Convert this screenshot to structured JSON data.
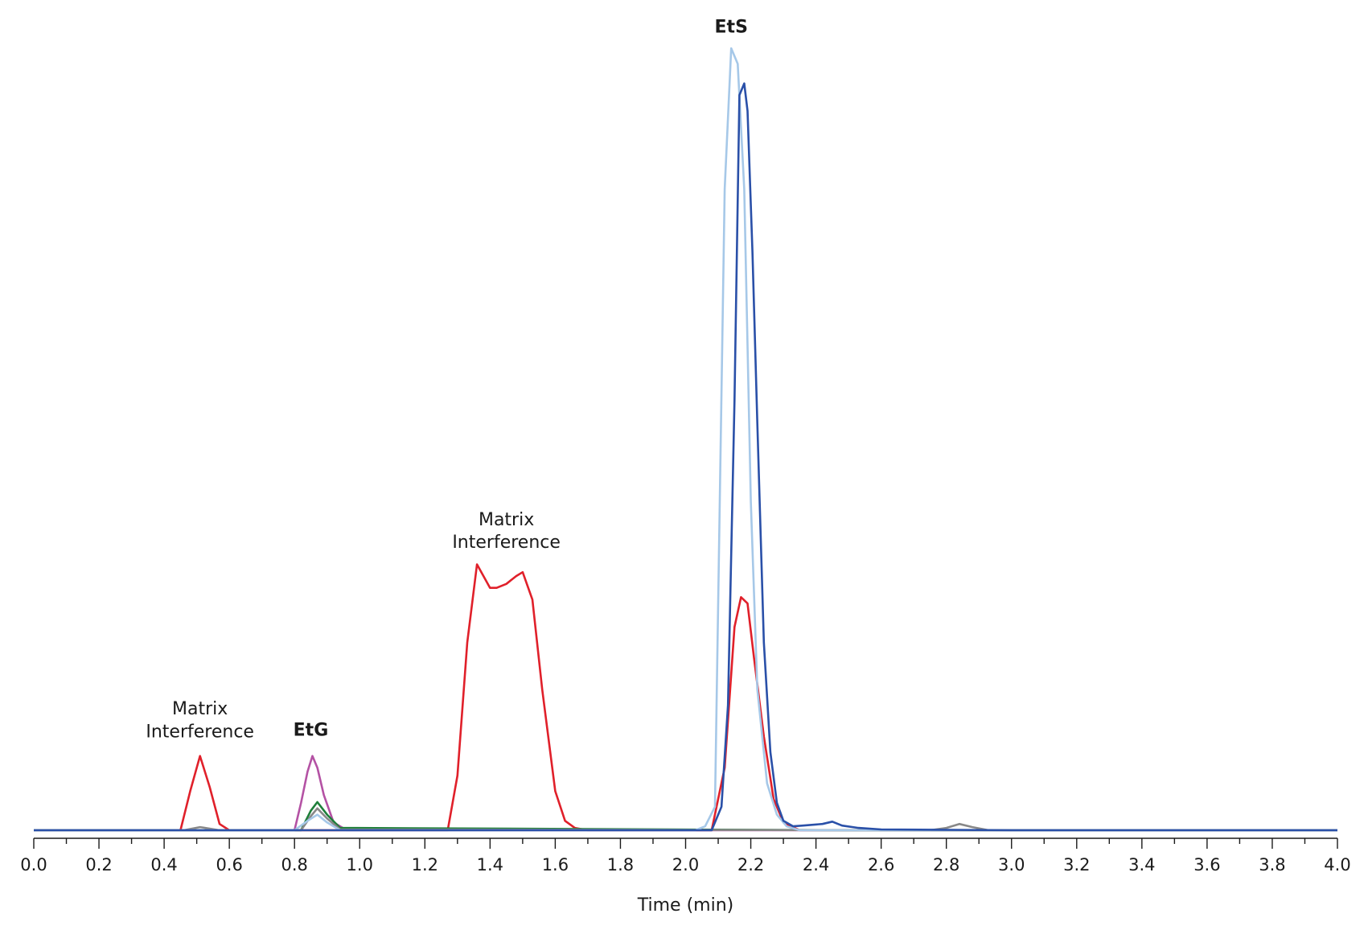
{
  "chart_data": {
    "type": "line",
    "title": "",
    "xlabel": "Time (min)",
    "ylabel": "",
    "xlim": [
      0.0,
      4.0
    ],
    "ylim": [
      0,
      100
    ],
    "grid": false,
    "x_ticks": [
      "0.0",
      "0.2",
      "0.4",
      "0.6",
      "0.8",
      "1.0",
      "1.2",
      "1.4",
      "1.6",
      "1.8",
      "2.0",
      "2.2",
      "2.4",
      "2.6",
      "2.8",
      "3.0",
      "3.2",
      "3.4",
      "3.6",
      "3.8",
      "4.0"
    ],
    "annotations": [
      {
        "text": "Matrix",
        "x": 0.51,
        "y": 14.8,
        "bold": false
      },
      {
        "text": "Interference",
        "x": 0.51,
        "y": 11.9,
        "bold": false
      },
      {
        "text": "EtG",
        "x": 0.85,
        "y": 12.1,
        "bold": true
      },
      {
        "text": "Matrix",
        "x": 1.45,
        "y": 39.0,
        "bold": false
      },
      {
        "text": "Interference",
        "x": 1.45,
        "y": 36.1,
        "bold": false
      },
      {
        "text": "EtS",
        "x": 2.14,
        "y": 102.0,
        "bold": true
      }
    ],
    "series": [
      {
        "color": "#e0202a",
        "x": [
          0.0,
          0.45,
          0.48,
          0.51,
          0.54,
          0.57,
          0.6,
          1.27,
          1.3,
          1.33,
          1.36,
          1.38,
          1.4,
          1.42,
          1.45,
          1.48,
          1.5,
          1.53,
          1.56,
          1.6,
          1.63,
          1.66,
          1.7,
          2.08,
          2.12,
          2.15,
          2.17,
          2.19,
          2.21,
          2.24,
          2.27,
          2.3,
          2.35,
          4.0
        ],
        "y": [
          0.0,
          0.0,
          5.0,
          9.5,
          5.5,
          0.8,
          0.0,
          0.0,
          7.0,
          24.0,
          34.0,
          32.5,
          31.0,
          31.0,
          31.5,
          32.5,
          33.0,
          29.5,
          18.0,
          5.0,
          1.2,
          0.3,
          0.0,
          0.0,
          8.0,
          26.0,
          29.8,
          29.0,
          22.0,
          12.0,
          4.0,
          1.0,
          0.0,
          0.0
        ]
      },
      {
        "color": "#b452a4",
        "x": [
          0.0,
          0.8,
          0.82,
          0.84,
          0.855,
          0.87,
          0.89,
          0.92,
          0.96,
          4.0
        ],
        "y": [
          0.0,
          0.0,
          3.5,
          7.5,
          9.5,
          8.0,
          4.5,
          1.0,
          0.0,
          0.0
        ]
      },
      {
        "color": "#1e7f3a",
        "x": [
          0.0,
          0.82,
          0.85,
          0.87,
          0.9,
          0.94,
          2.5,
          4.0
        ],
        "y": [
          0.0,
          0.0,
          2.5,
          3.6,
          2.0,
          0.3,
          0.0,
          0.0
        ]
      },
      {
        "color": "#888888",
        "x": [
          0.0,
          0.46,
          0.51,
          0.57,
          0.82,
          0.85,
          0.87,
          0.9,
          0.94,
          2.75,
          2.8,
          2.84,
          2.88,
          2.93,
          4.0
        ],
        "y": [
          0.0,
          0.0,
          0.4,
          0.0,
          0.0,
          1.8,
          2.8,
          1.5,
          0.1,
          0.0,
          0.3,
          0.8,
          0.4,
          0.0,
          0.0
        ]
      },
      {
        "color": "#a6c8e8",
        "x": [
          0.0,
          0.8,
          0.84,
          0.87,
          0.9,
          0.94,
          2.03,
          2.06,
          2.09,
          2.12,
          2.14,
          2.16,
          2.18,
          2.2,
          2.22,
          2.25,
          2.28,
          2.31,
          2.35,
          4.0
        ],
        "y": [
          0.0,
          0.0,
          1.2,
          2.0,
          1.0,
          0.0,
          0.0,
          0.5,
          3.0,
          82.0,
          100.0,
          98.0,
          82.0,
          42.0,
          18.0,
          6.0,
          2.0,
          0.5,
          0.0,
          0.0
        ]
      },
      {
        "color": "#2a50a8",
        "x": [
          0.0,
          2.08,
          2.11,
          2.13,
          2.15,
          2.165,
          2.18,
          2.19,
          2.205,
          2.22,
          2.24,
          2.26,
          2.28,
          2.3,
          2.33,
          2.36,
          2.42,
          2.45,
          2.48,
          2.53,
          2.6,
          3.0,
          4.0
        ],
        "y": [
          0.0,
          0.0,
          3.0,
          16.0,
          55.0,
          94.0,
          95.5,
          92.0,
          74.0,
          52.0,
          24.0,
          10.0,
          3.5,
          1.2,
          0.5,
          0.6,
          0.8,
          1.1,
          0.6,
          0.3,
          0.1,
          0.0,
          0.0
        ]
      }
    ]
  }
}
